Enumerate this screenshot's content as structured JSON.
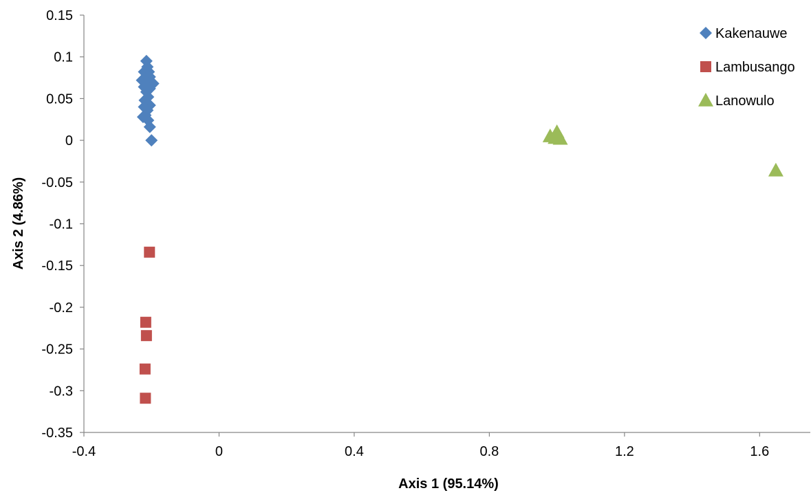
{
  "chart_data": {
    "type": "scatter",
    "title": "",
    "xlabel": "Axis 1 (95.14%)",
    "ylabel": "Axis 2 (4.86%)",
    "xlim": [
      -0.4,
      1.75
    ],
    "ylim": [
      -0.35,
      0.15
    ],
    "x_ticks": [
      -0.4,
      0,
      0.4,
      0.8,
      1.2,
      1.6
    ],
    "x_tick_labels": [
      "-0.4",
      "0",
      "0.4",
      "0.8",
      "1.2",
      "1.6"
    ],
    "y_ticks": [
      0.15,
      0.1,
      0.05,
      0,
      -0.05,
      -0.1,
      -0.15,
      -0.2,
      -0.25,
      -0.3,
      -0.35
    ],
    "y_tick_labels": [
      "0.15",
      "0.1",
      "0.05",
      "0",
      "-0.05",
      "-0.1",
      "-0.15",
      "-0.2",
      "-0.25",
      "-0.3",
      "-0.35"
    ],
    "grid": false,
    "legend_position": "top-right",
    "series": [
      {
        "name": "Kakenauwe",
        "marker": "diamond",
        "color": "#4f81bd",
        "points": [
          [
            -0.215,
            0.095
          ],
          [
            -0.212,
            0.088
          ],
          [
            -0.208,
            0.082
          ],
          [
            -0.222,
            0.082
          ],
          [
            -0.205,
            0.076
          ],
          [
            -0.228,
            0.072
          ],
          [
            -0.218,
            0.074
          ],
          [
            -0.195,
            0.068
          ],
          [
            -0.21,
            0.068
          ],
          [
            -0.222,
            0.064
          ],
          [
            -0.205,
            0.062
          ],
          [
            -0.215,
            0.058
          ],
          [
            -0.21,
            0.052
          ],
          [
            -0.22,
            0.048
          ],
          [
            -0.205,
            0.042
          ],
          [
            -0.222,
            0.04
          ],
          [
            -0.212,
            0.036
          ],
          [
            -0.218,
            0.03
          ],
          [
            -0.225,
            0.028
          ],
          [
            -0.21,
            0.024
          ],
          [
            -0.205,
            0.016
          ],
          [
            -0.2,
            0.0
          ]
        ]
      },
      {
        "name": "Lambusango",
        "marker": "square",
        "color": "#c0504d",
        "points": [
          [
            -0.206,
            -0.134
          ],
          [
            -0.217,
            -0.218
          ],
          [
            -0.215,
            -0.234
          ],
          [
            -0.219,
            -0.274
          ],
          [
            -0.218,
            -0.309
          ]
        ]
      },
      {
        "name": "Lanowulo",
        "marker": "triangle",
        "color": "#9bbb59",
        "points": [
          [
            0.98,
            0.005
          ],
          [
            0.995,
            0.003
          ],
          [
            1.0,
            0.01
          ],
          [
            1.01,
            0.002
          ],
          [
            1.648,
            -0.036
          ]
        ]
      }
    ]
  }
}
